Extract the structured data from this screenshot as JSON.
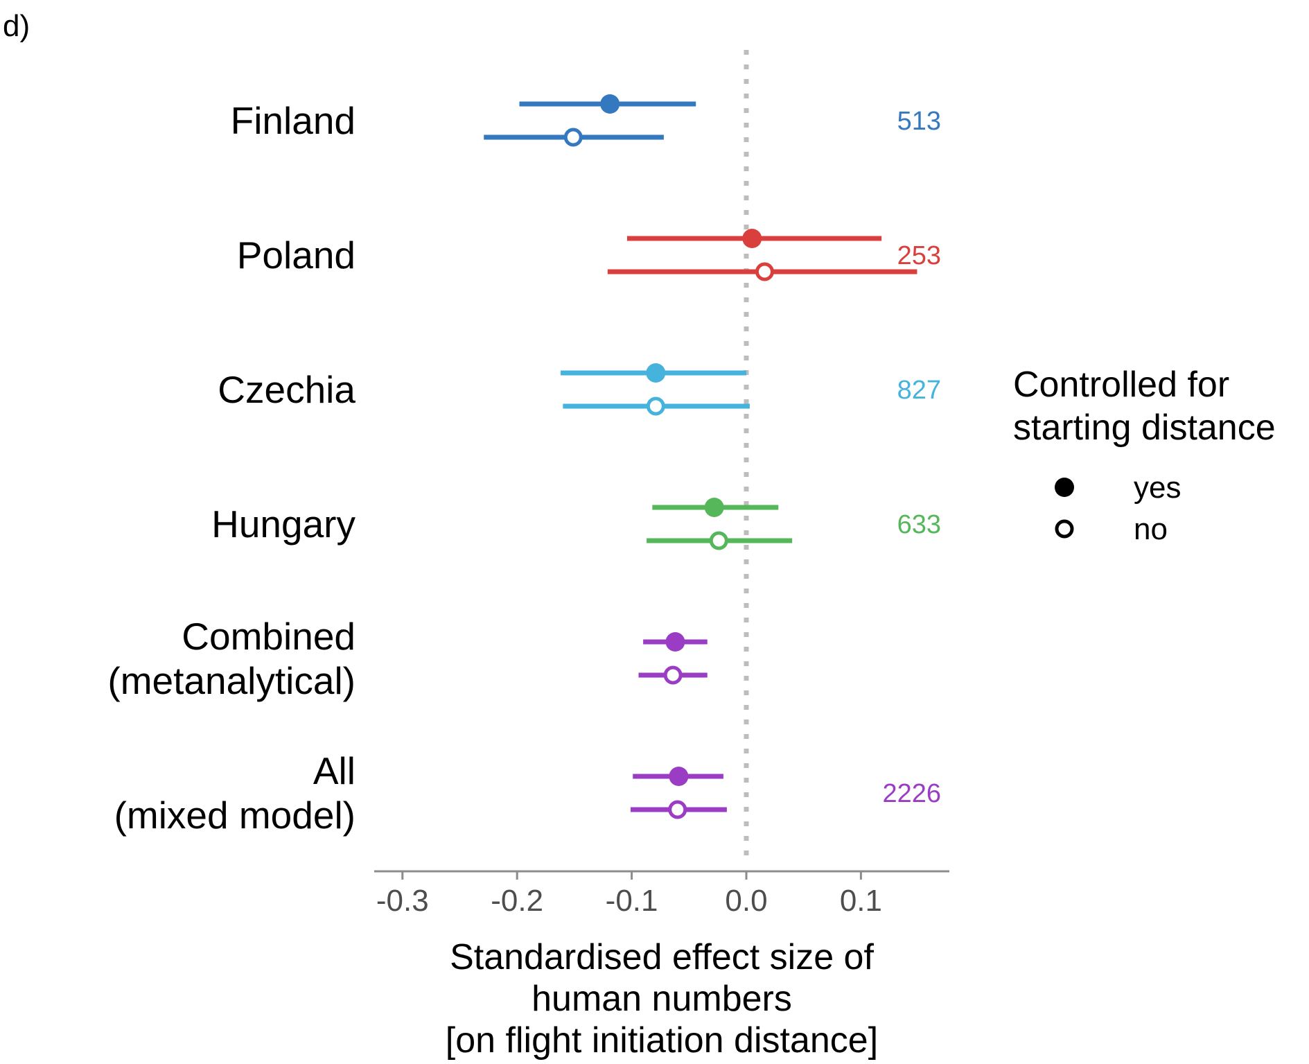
{
  "panel_label": "d)",
  "chart_data": {
    "type": "forest",
    "xlabel": [
      "Standardised effect size of",
      "human numbers",
      "[on flight initiation distance]"
    ],
    "xlim": [
      -0.323,
      0.177
    ],
    "xticks": [
      -0.3,
      -0.2,
      -0.1,
      0.0,
      0.1
    ],
    "xtick_labels": [
      "-0.3",
      "-0.2",
      "-0.1",
      "0.0",
      "0.1"
    ],
    "reference_line": 0.0,
    "grid": false,
    "legend": {
      "title": [
        "Controlled for",
        "starting distance"
      ],
      "position": "right",
      "entries": [
        {
          "label": "yes",
          "marker": "filled"
        },
        {
          "label": "no",
          "marker": "open"
        }
      ]
    },
    "categories": [
      {
        "label": [
          "Finland"
        ],
        "n": "513",
        "color": "#3478bf",
        "yes": {
          "estimate": -0.119,
          "lower": -0.198,
          "upper": -0.044
        },
        "no": {
          "estimate": -0.151,
          "lower": -0.229,
          "upper": -0.072
        }
      },
      {
        "label": [
          "Poland"
        ],
        "n": "253",
        "color": "#d93f3c",
        "yes": {
          "estimate": 0.005,
          "lower": -0.104,
          "upper": 0.118
        },
        "no": {
          "estimate": 0.016,
          "lower": -0.121,
          "upper": 0.149
        }
      },
      {
        "label": [
          "Czechia"
        ],
        "n": "827",
        "color": "#46b3dc",
        "yes": {
          "estimate": -0.079,
          "lower": -0.162,
          "upper": 0.0
        },
        "no": {
          "estimate": -0.079,
          "lower": -0.16,
          "upper": 0.003
        }
      },
      {
        "label": [
          "Hungary"
        ],
        "n": "633",
        "color": "#55b75a",
        "yes": {
          "estimate": -0.028,
          "lower": -0.082,
          "upper": 0.028
        },
        "no": {
          "estimate": -0.024,
          "lower": -0.087,
          "upper": 0.04
        }
      },
      {
        "label": [
          "Combined",
          "(metanalytical)"
        ],
        "n": "",
        "color": "#9a3dc4",
        "yes": {
          "estimate": -0.062,
          "lower": -0.09,
          "upper": -0.034
        },
        "no": {
          "estimate": -0.064,
          "lower": -0.094,
          "upper": -0.034
        }
      },
      {
        "label": [
          "All",
          "(mixed model)"
        ],
        "n": "2226",
        "color": "#9a3dc4",
        "yes": {
          "estimate": -0.059,
          "lower": -0.099,
          "upper": -0.02
        },
        "no": {
          "estimate": -0.06,
          "lower": -0.101,
          "upper": -0.017
        }
      }
    ]
  }
}
